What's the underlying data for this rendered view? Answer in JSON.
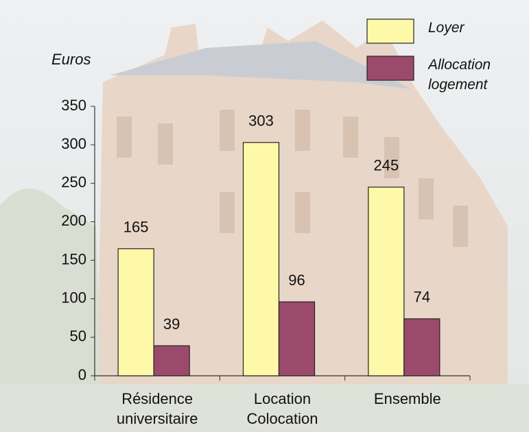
{
  "chart_data": {
    "type": "bar",
    "y_label": "Euros",
    "categories": [
      [
        "Résidence",
        "universitaire"
      ],
      [
        "Location",
        "Colocation"
      ],
      [
        "Ensemble"
      ]
    ],
    "series": [
      {
        "name": "Loyer",
        "color": "#fdf9a8",
        "values": [
          165,
          303,
          245
        ]
      },
      {
        "name": "Allocation logement",
        "color": "#9c4a6c",
        "values": [
          39,
          96,
          74
        ]
      }
    ],
    "ylim": [
      0,
      350
    ],
    "yticks": [
      0,
      50,
      100,
      150,
      200,
      250,
      300,
      350
    ]
  }
}
